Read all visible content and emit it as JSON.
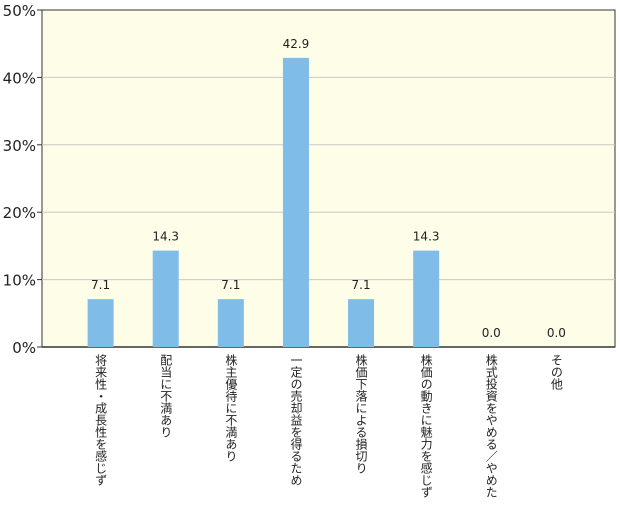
{
  "chart_data": {
    "type": "bar",
    "categories": [
      "将来性・成長性を感じず",
      "配当に不満あり",
      "株主優待に不満あり",
      "一定の売却益を得るため",
      "株価下落による損切り",
      "株価の動きに魅力を感じず",
      "株式投資をやめる／やめた",
      "その他"
    ],
    "values": [
      7.1,
      14.3,
      7.1,
      42.9,
      7.1,
      14.3,
      0.0,
      0.0
    ],
    "value_labels": [
      "7.1",
      "14.3",
      "7.1",
      "42.9",
      "7.1",
      "14.3",
      "0.0",
      "0.0"
    ],
    "yticks": [
      "0%",
      "10%",
      "20%",
      "30%",
      "40%",
      "50%"
    ],
    "ylim": [
      0,
      50
    ],
    "grid": true,
    "colors": {
      "bar": "#7fbde8",
      "plot_bg": "#fefde8",
      "grid": "#c8c8c8",
      "axis": "#333333"
    }
  }
}
